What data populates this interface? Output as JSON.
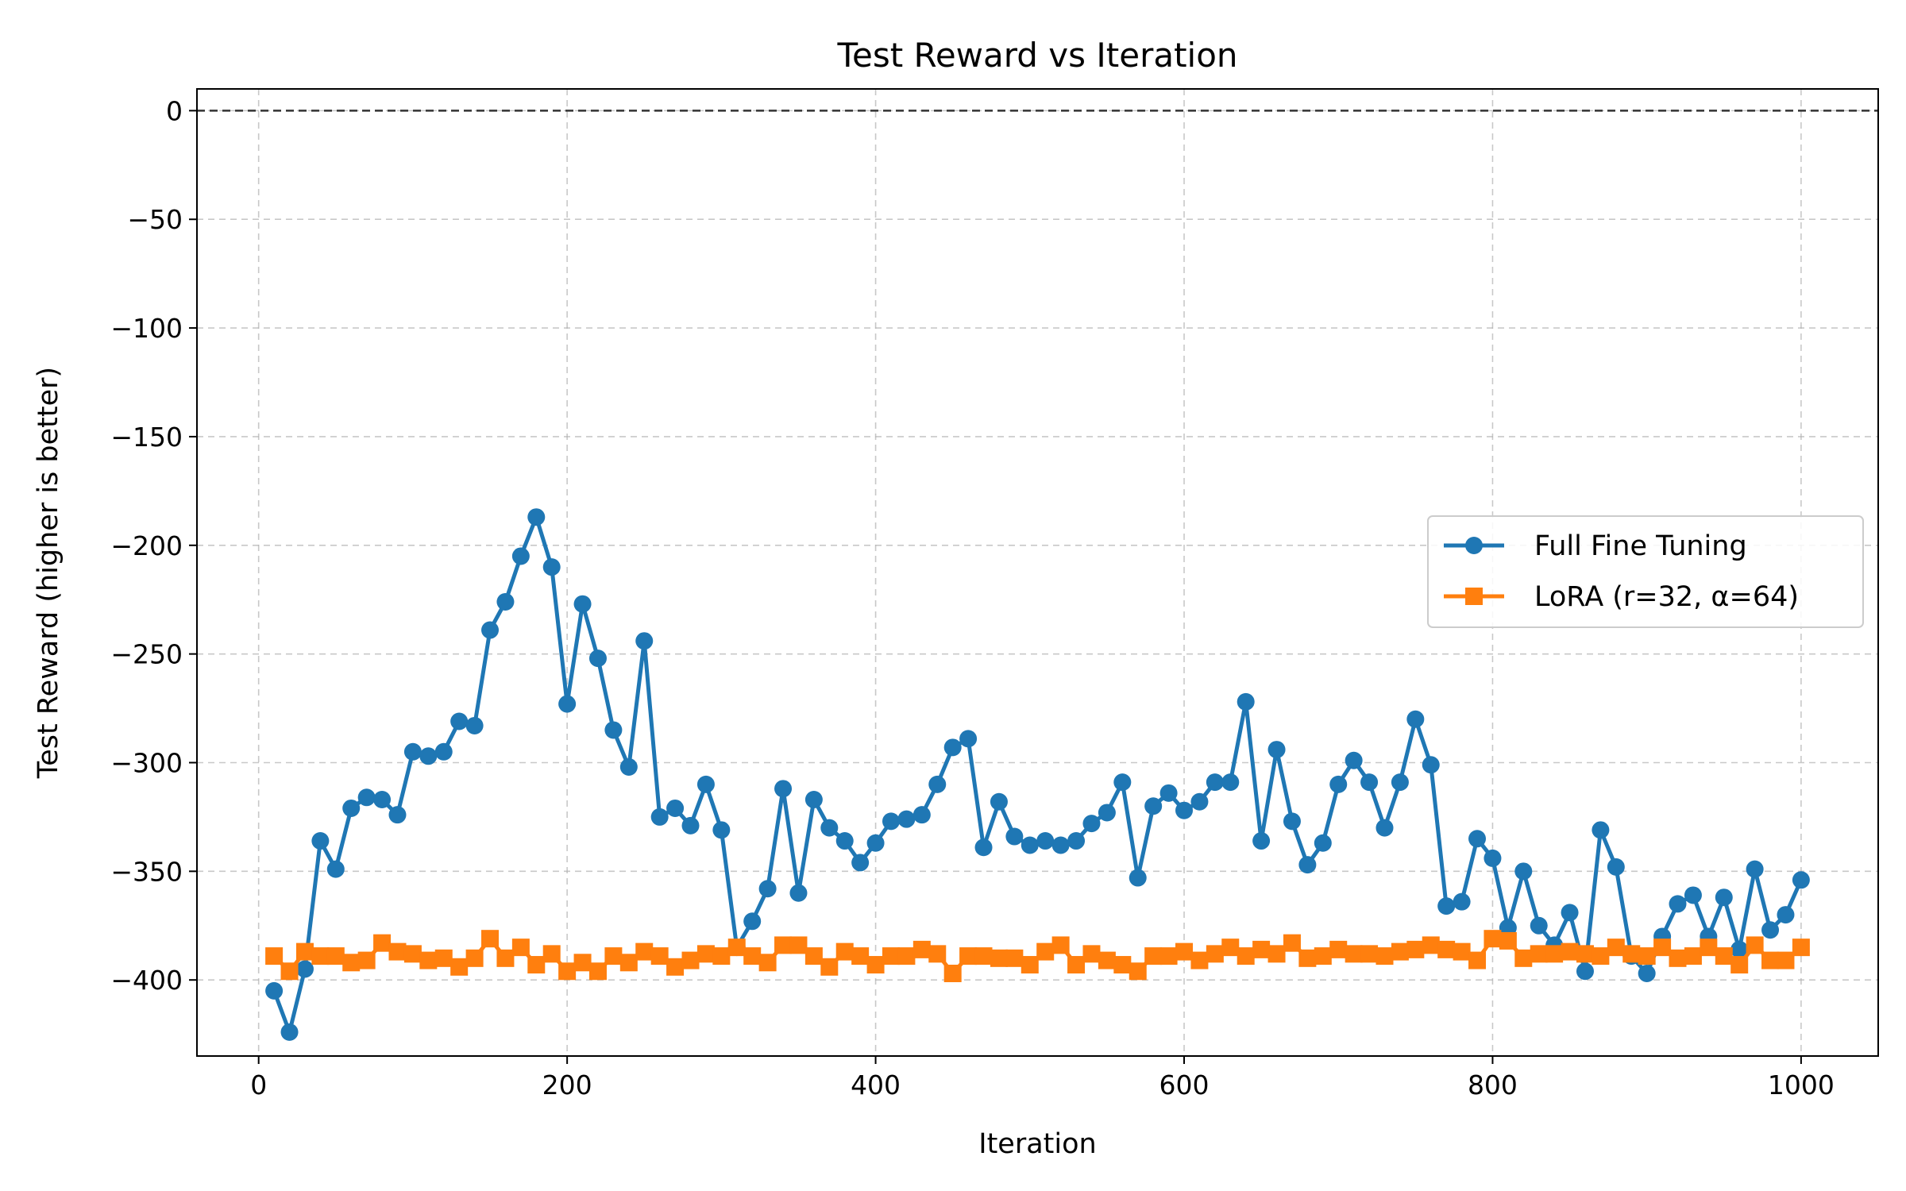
{
  "chart_data": {
    "type": "line",
    "title": "Test Reward vs Iteration",
    "xlabel": "Iteration",
    "ylabel": "Test Reward (higher is better)",
    "xlim": [
      -40,
      1050
    ],
    "ylim": [
      -435,
      10
    ],
    "xticks": [
      0,
      200,
      400,
      600,
      800,
      1000
    ],
    "xtick_labels": [
      "0",
      "200",
      "400",
      "600",
      "800",
      "1000"
    ],
    "yticks": [
      0,
      -50,
      -100,
      -150,
      -200,
      -250,
      -300,
      -350,
      -400
    ],
    "ytick_labels": [
      "0",
      "−50",
      "−100",
      "−150",
      "−200",
      "−250",
      "−300",
      "−350",
      "−400"
    ],
    "grid": true,
    "reference_line": {
      "y": 0,
      "style": "dashed",
      "color": "#333333"
    },
    "legend_position": "center-right",
    "x": [
      10,
      20,
      30,
      40,
      50,
      60,
      70,
      80,
      90,
      100,
      110,
      120,
      130,
      140,
      150,
      160,
      170,
      180,
      190,
      200,
      210,
      220,
      230,
      240,
      250,
      260,
      270,
      280,
      290,
      300,
      310,
      320,
      330,
      340,
      350,
      360,
      370,
      380,
      390,
      400,
      410,
      420,
      430,
      440,
      450,
      460,
      470,
      480,
      490,
      500,
      510,
      520,
      530,
      540,
      550,
      560,
      570,
      580,
      590,
      600,
      610,
      620,
      630,
      640,
      650,
      660,
      670,
      680,
      690,
      700,
      710,
      720,
      730,
      740,
      750,
      760,
      770,
      780,
      790,
      800,
      810,
      820,
      830,
      840,
      850,
      860,
      870,
      880,
      890,
      900,
      910,
      920,
      930,
      940,
      950,
      960,
      970,
      980,
      990,
      1000
    ],
    "series": [
      {
        "name": "Full Fine Tuning",
        "color": "#1f77b4",
        "marker": "circle",
        "values": [
          -405,
          -424,
          -395,
          -336,
          -349,
          -321,
          -316,
          -317,
          -324,
          -295,
          -297,
          -295,
          -281,
          -283,
          -239,
          -226,
          -205,
          -187,
          -210,
          -273,
          -227,
          -252,
          -285,
          -302,
          -244,
          -325,
          -321,
          -329,
          -310,
          -331,
          -385,
          -373,
          -358,
          -312,
          -360,
          -317,
          -330,
          -336,
          -346,
          -337,
          -327,
          -326,
          -324,
          -310,
          -293,
          -289,
          -339,
          -318,
          -334,
          -338,
          -336,
          -338,
          -336,
          -328,
          -323,
          -309,
          -353,
          -320,
          -314,
          -322,
          -318,
          -309,
          -309,
          -272,
          -336,
          -294,
          -327,
          -347,
          -337,
          -310,
          -299,
          -309,
          -330,
          -309,
          -280,
          -301,
          -366,
          -364,
          -335,
          -344,
          -376,
          -350,
          -375,
          -384,
          -369,
          -396,
          -331,
          -348,
          -389,
          -397,
          -380,
          -365,
          -361,
          -380,
          -362,
          -386,
          -349,
          -377,
          -370,
          -354
        ]
      },
      {
        "name": "LoRA (r=32, α=64)",
        "color": "#ff7f0e",
        "marker": "square",
        "values": [
          -389,
          -396,
          -387,
          -389,
          -389,
          -392,
          -391,
          -383,
          -387,
          -388,
          -391,
          -390,
          -394,
          -390,
          -381,
          -390,
          -385,
          -393,
          -388,
          -396,
          -392,
          -396,
          -389,
          -392,
          -387,
          -389,
          -394,
          -391,
          -388,
          -389,
          -385,
          -389,
          -392,
          -384,
          -384,
          -389,
          -394,
          -387,
          -389,
          -393,
          -389,
          -389,
          -386,
          -388,
          -397,
          -389,
          -389,
          -390,
          -390,
          -393,
          -387,
          -384,
          -393,
          -388,
          -391,
          -393,
          -396,
          -389,
          -389,
          -387,
          -391,
          -388,
          -385,
          -389,
          -386,
          -388,
          -383,
          -390,
          -389,
          -386,
          -388,
          -388,
          -389,
          -387,
          -386,
          -384,
          -386,
          -387,
          -391,
          -381,
          -382,
          -390,
          -388,
          -388,
          -387,
          -388,
          -389,
          -385,
          -388,
          -389,
          -385,
          -390,
          -389,
          -385,
          -389,
          -393,
          -384,
          -391,
          -391,
          -385
        ]
      }
    ]
  }
}
